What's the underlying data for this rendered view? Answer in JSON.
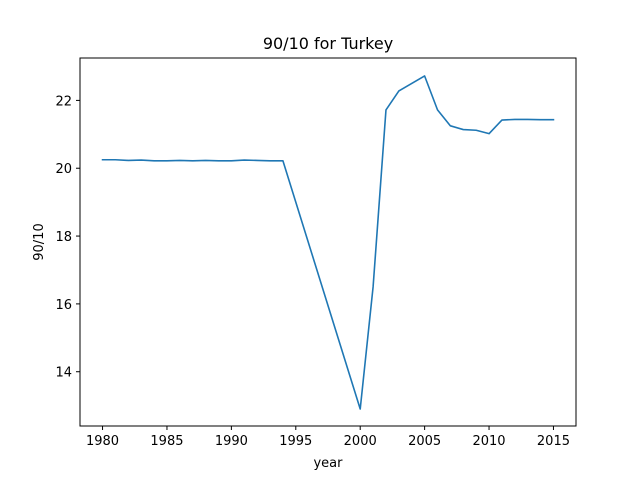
{
  "chart_data": {
    "type": "line",
    "title": "90/10 for Turkey",
    "xlabel": "year",
    "ylabel": "90/10",
    "xlim": [
      1978.25,
      2016.75
    ],
    "ylim": [
      12.4,
      23.25
    ],
    "x_ticks": [
      1980,
      1985,
      1990,
      1995,
      2000,
      2005,
      2010,
      2015
    ],
    "y_ticks": [
      14,
      16,
      18,
      20,
      22
    ],
    "grid": false,
    "series_color": "#1f77b4",
    "series": [
      {
        "x": [
          1980,
          1981,
          1982,
          1983,
          1984,
          1985,
          1986,
          1987,
          1988,
          1989,
          1990,
          1991,
          1992,
          1993,
          1994,
          2000,
          2001,
          2002,
          2003,
          2004,
          2005,
          2006,
          2007,
          2008,
          2009,
          2010,
          2011,
          2012,
          2013,
          2014,
          2015
        ],
        "y": [
          20.25,
          20.25,
          20.23,
          20.24,
          20.22,
          20.22,
          20.23,
          20.22,
          20.23,
          20.22,
          20.22,
          20.24,
          20.23,
          20.22,
          20.22,
          12.9,
          16.5,
          21.72,
          22.28,
          22.5,
          22.72,
          21.72,
          21.25,
          21.14,
          21.12,
          21.02,
          21.42,
          21.44,
          21.44,
          21.43,
          21.43
        ]
      }
    ]
  }
}
